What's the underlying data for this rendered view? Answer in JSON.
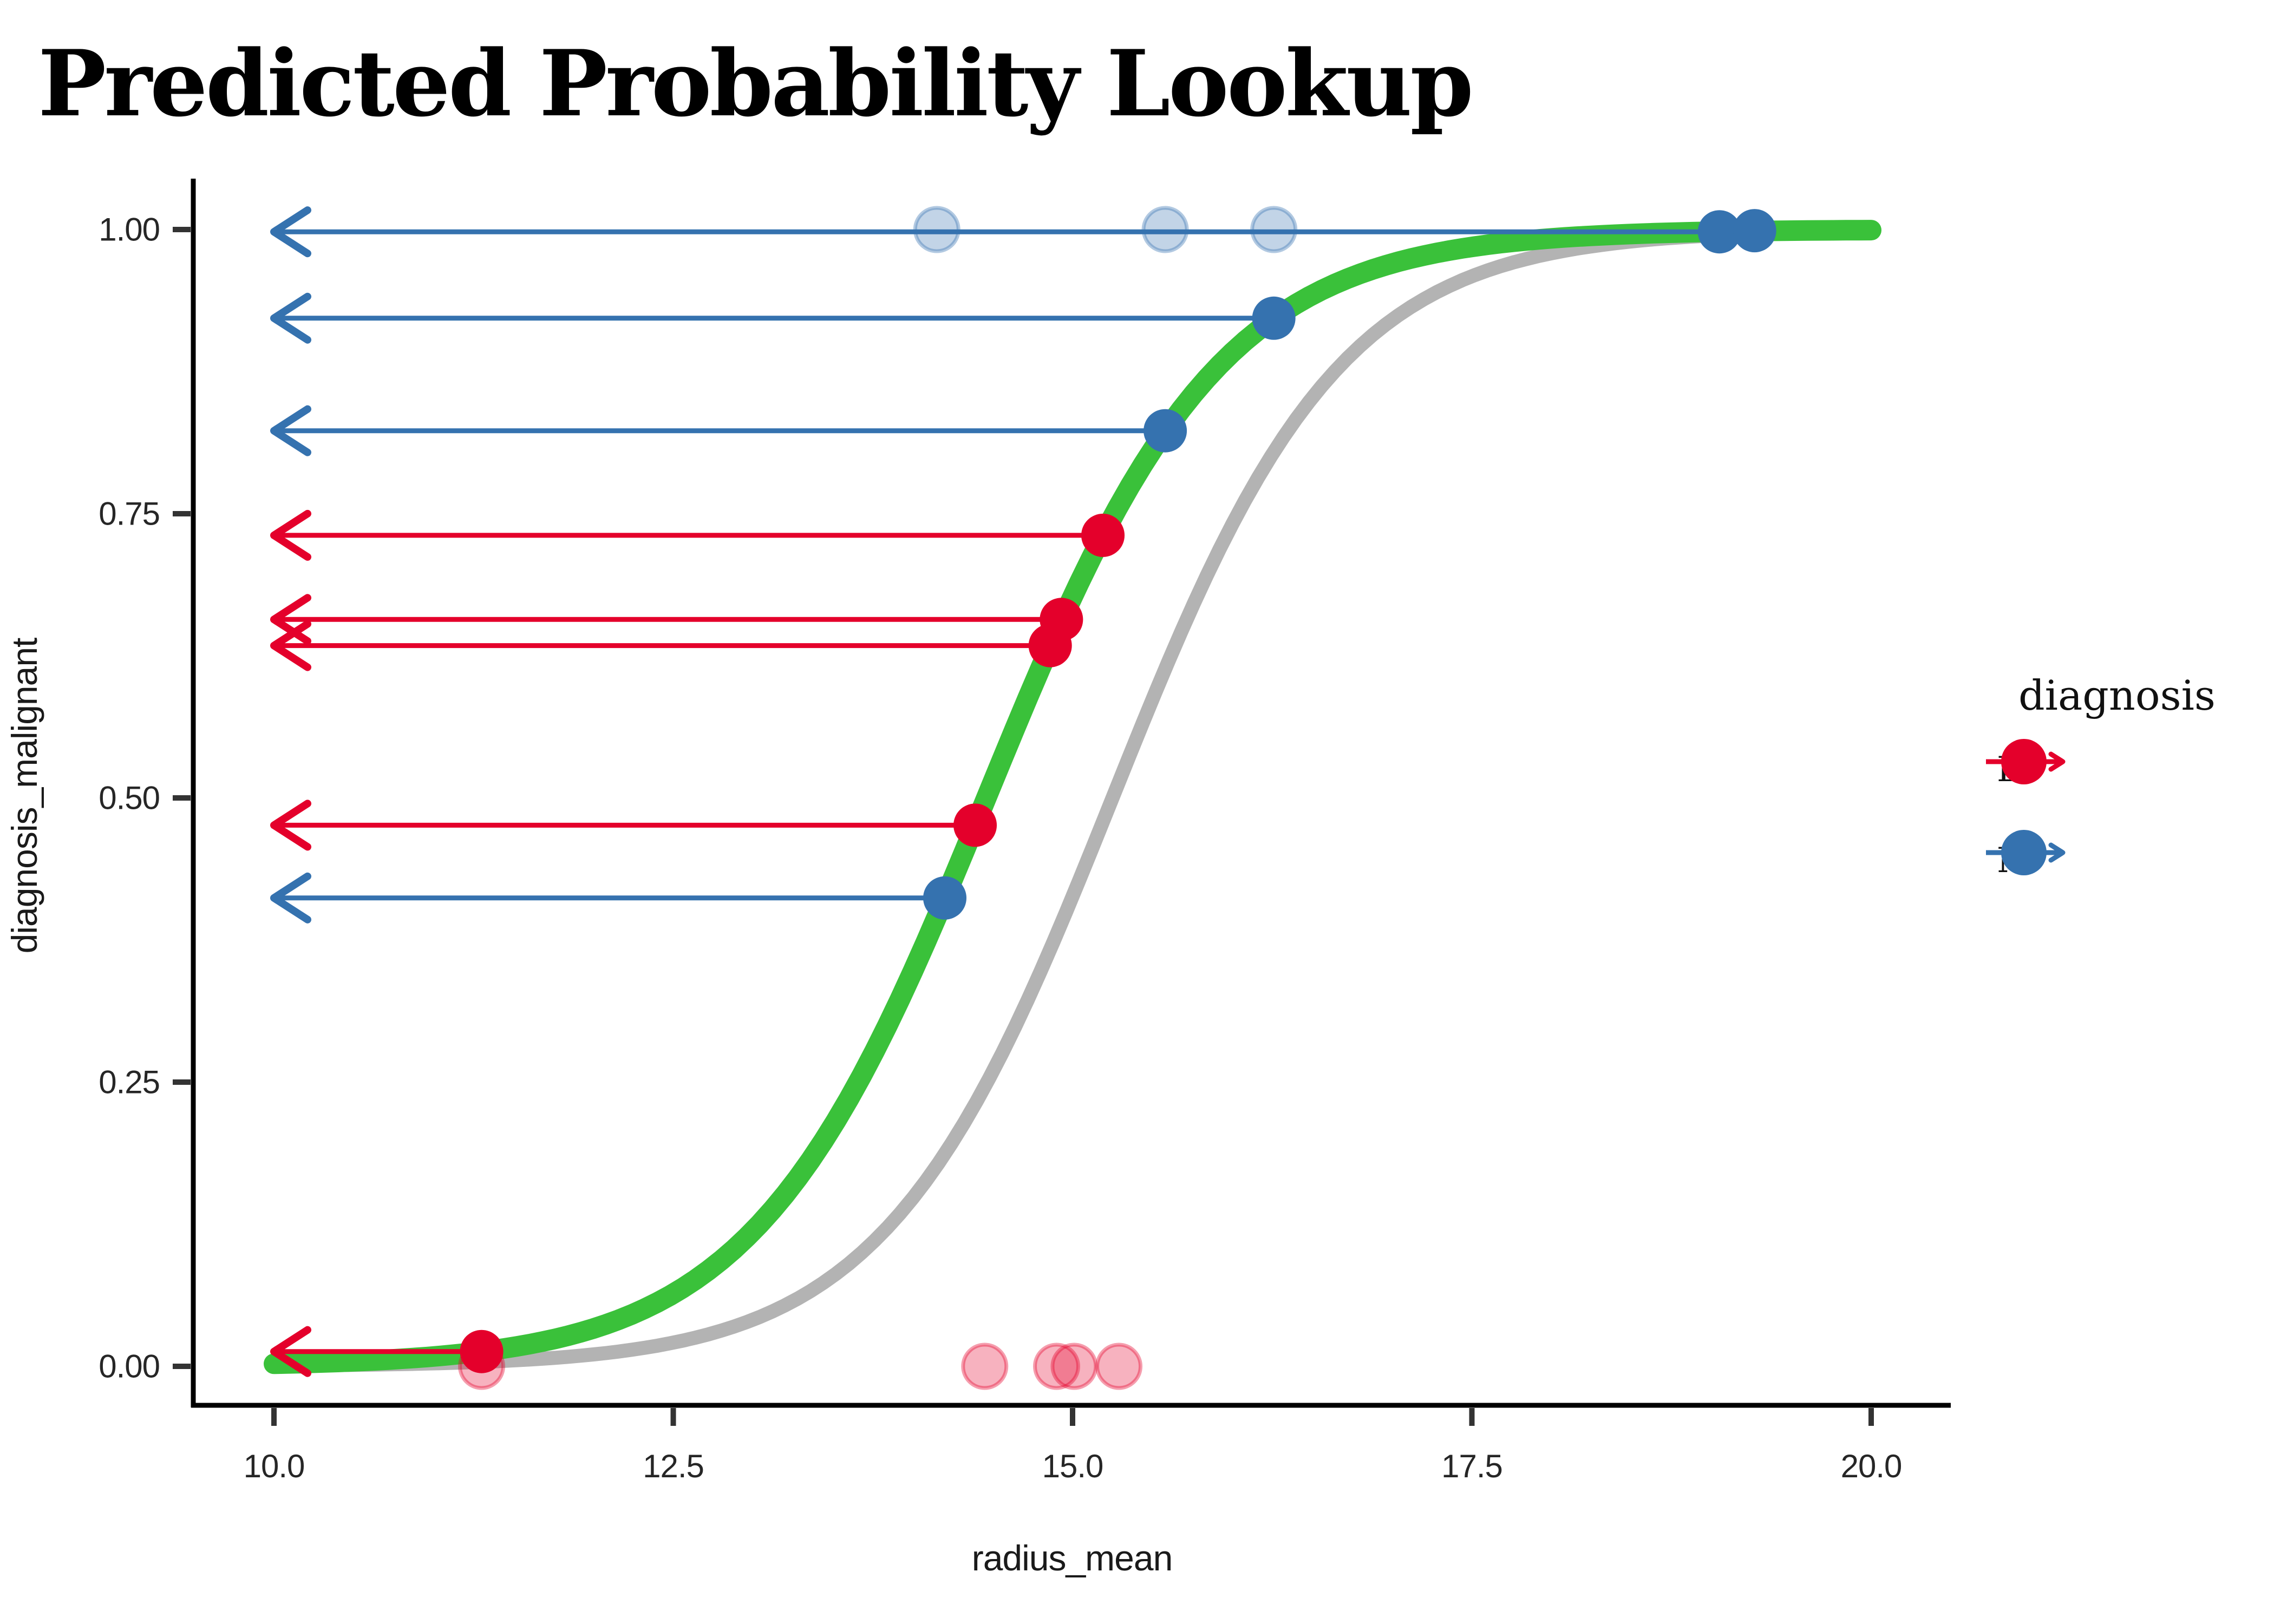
{
  "title": "Predicted Probability Lookup",
  "axes": {
    "x": {
      "label": "radius_mean",
      "tick_labels": [
        "10.0",
        "12.5",
        "15.0",
        "17.5",
        "20.0"
      ],
      "tick_values": [
        10,
        12.5,
        15,
        17.5,
        20
      ],
      "range": [
        10,
        20
      ]
    },
    "y": {
      "label": "diagnosis_malignant",
      "tick_labels": [
        "0.00",
        "0.25",
        "0.50",
        "0.75",
        "1.00"
      ],
      "tick_values": [
        0,
        0.25,
        0.5,
        0.75,
        1
      ],
      "range": [
        0,
        1
      ]
    }
  },
  "legend": {
    "title": "diagnosis",
    "items": [
      {
        "label": "B",
        "color": "#E4002B"
      },
      {
        "label": "M",
        "color": "#3572AF"
      }
    ]
  },
  "colors": {
    "benign": "#E4002B",
    "malignant": "#3572AF",
    "fit_curve": "#3AC13A",
    "alt_curve": "#B3B3B3",
    "axis": "#000000",
    "tick": "#333333"
  },
  "chart_data": {
    "type": "scatter",
    "title": "Predicted Probability Lookup",
    "xlabel": "radius_mean",
    "ylabel": "diagnosis_malignant",
    "xlim": [
      10,
      20
    ],
    "ylim": [
      0,
      1
    ],
    "grid": "off",
    "legend_position": "right",
    "curves": [
      {
        "name": "logistic_fit_green",
        "shape": "logistic",
        "color": "#3AC13A",
        "midpoint": 14.46,
        "slope": 1.37,
        "stroke_width": 38
      },
      {
        "name": "logistic_fit_gray",
        "shape": "logistic",
        "color": "#B3B3B3",
        "midpoint": 15.25,
        "slope": 1.4,
        "stroke_width": 26
      }
    ],
    "predicted_points": [
      {
        "series": "B",
        "x": 11.3,
        "y": 0.013,
        "arrow": true
      },
      {
        "series": "B",
        "x": 14.39,
        "y": 0.476,
        "arrow": true
      },
      {
        "series": "B",
        "x": 14.86,
        "y": 0.634,
        "arrow": true
      },
      {
        "series": "B",
        "x": 14.93,
        "y": 0.657,
        "arrow": true
      },
      {
        "series": "B",
        "x": 15.19,
        "y": 0.731,
        "arrow": true
      },
      {
        "series": "M",
        "x": 14.2,
        "y": 0.412,
        "arrow": true
      },
      {
        "series": "M",
        "x": 15.58,
        "y": 0.823,
        "arrow": true
      },
      {
        "series": "M",
        "x": 16.26,
        "y": 0.922,
        "arrow": true
      },
      {
        "series": "M",
        "x": 19.05,
        "y": 0.998,
        "arrow": true
      },
      {
        "series": "M",
        "x": 19.27,
        "y": 0.999,
        "arrow": false
      }
    ],
    "observed_points": [
      {
        "series": "B",
        "x": 11.3,
        "y": 0
      },
      {
        "series": "B",
        "x": 14.45,
        "y": 0
      },
      {
        "series": "B",
        "x": 14.9,
        "y": 0
      },
      {
        "series": "B",
        "x": 15.01,
        "y": 0
      },
      {
        "series": "B",
        "x": 15.29,
        "y": 0
      },
      {
        "series": "M",
        "x": 14.15,
        "y": 1
      },
      {
        "series": "M",
        "x": 15.58,
        "y": 1
      },
      {
        "series": "M",
        "x": 16.26,
        "y": 1
      }
    ],
    "arrow_target_x": 10
  }
}
